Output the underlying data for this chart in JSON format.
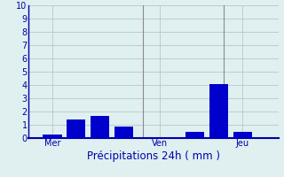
{
  "bar_positions": [
    1,
    2,
    3,
    4,
    7,
    8,
    9
  ],
  "bar_heights": [
    0.3,
    1.4,
    1.7,
    0.9,
    0.5,
    4.1,
    0.5
  ],
  "bar_color": "#0000CC",
  "bar_width": 0.8,
  "ylim": [
    0,
    10
  ],
  "yticks": [
    0,
    1,
    2,
    3,
    4,
    5,
    6,
    7,
    8,
    9,
    10
  ],
  "xlim": [
    0,
    10.5
  ],
  "day_labels": [
    {
      "label": "Mer",
      "x": 1.0
    },
    {
      "label": "Ven",
      "x": 5.5
    },
    {
      "label": "Jeu",
      "x": 9.0
    }
  ],
  "xlabel": "Précipitations 24h ( mm )",
  "background_color": "#E0F0F0",
  "grid_color": "#BBCCCC",
  "axis_color": "#0000AA",
  "text_color": "#0000AA",
  "vline_x": [
    4.8,
    8.2
  ],
  "vline_color": "#888899",
  "tick_fontsize": 7,
  "xlabel_fontsize": 8.5
}
